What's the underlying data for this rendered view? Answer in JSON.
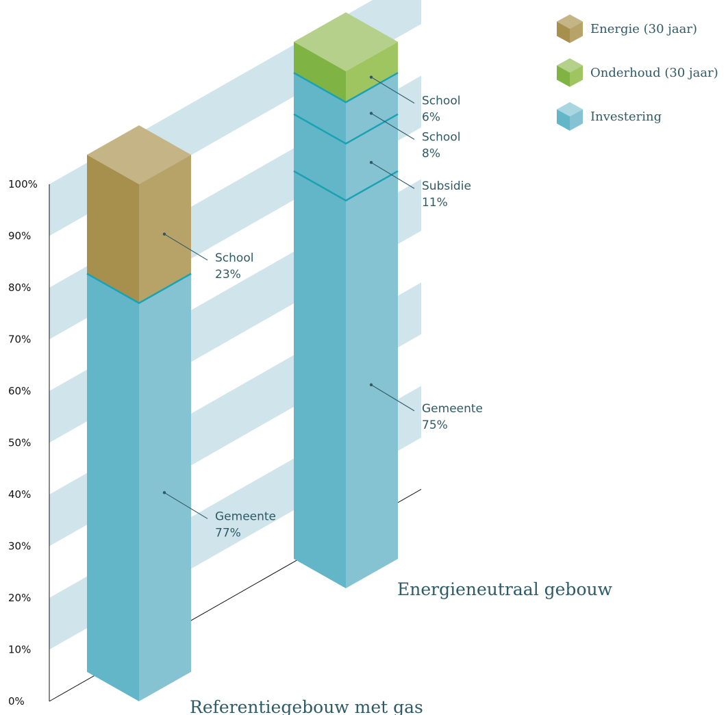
{
  "chart_data": {
    "type": "bar",
    "stacked": true,
    "orientation": "vertical",
    "projection": "isometric-3d",
    "ylim": [
      0,
      100
    ],
    "y_ticks": [
      "0%",
      "10%",
      "20%",
      "30%",
      "40%",
      "50%",
      "60%",
      "70%",
      "80%",
      "90%",
      "100%"
    ],
    "categories": [
      "Referentiegebouw met gas",
      "Energieneutraal gebouw"
    ],
    "series": [
      {
        "name": "Investering",
        "color": "#62b6c8"
      },
      {
        "name": "Onderhoud (30 jaar)",
        "color": "#85bb46"
      },
      {
        "name": "Energie (30 jaar)",
        "color": "#a99150"
      }
    ],
    "bars": [
      {
        "title": "Referentiegebouw met gas",
        "segments": [
          {
            "series": "Investering",
            "value": 77,
            "label": "Gemeente",
            "pct": "77%"
          },
          {
            "series": "Energie (30 jaar)",
            "value": 23,
            "label": "School",
            "pct": "23%"
          }
        ]
      },
      {
        "title": "Energieneutraal gebouw",
        "segments": [
          {
            "series": "Investering",
            "value": 75,
            "label": "Gemeente",
            "pct": "75%"
          },
          {
            "series": "Investering",
            "value": 11,
            "label": "Subsidie",
            "pct": "11%"
          },
          {
            "series": "Investering",
            "value": 8,
            "label": "School",
            "pct": "8%"
          },
          {
            "series": "Onderhoud (30 jaar)",
            "value": 6,
            "label": "School",
            "pct": "6%"
          }
        ]
      }
    ],
    "legend": {
      "position": "top-right",
      "entries": [
        "Energie (30 jaar)",
        "Onderhoud (30 jaar)",
        "Investering"
      ]
    },
    "grid": "alternating-bands"
  },
  "colors": {
    "band": "#d0e4eb",
    "divider": "#1aa2b3",
    "leader": "#2e5a66",
    "axis": "#111111",
    "investering": {
      "left": "#62b6c8",
      "right": "#86c3d2",
      "top": "#a9d6e1"
    },
    "onderhoud": {
      "left": "#7fb444",
      "right": "#9fc561",
      "top": "#b4d08a"
    },
    "energie": {
      "left": "#a78f4e",
      "right": "#b7a268",
      "top": "#c4b486"
    }
  }
}
